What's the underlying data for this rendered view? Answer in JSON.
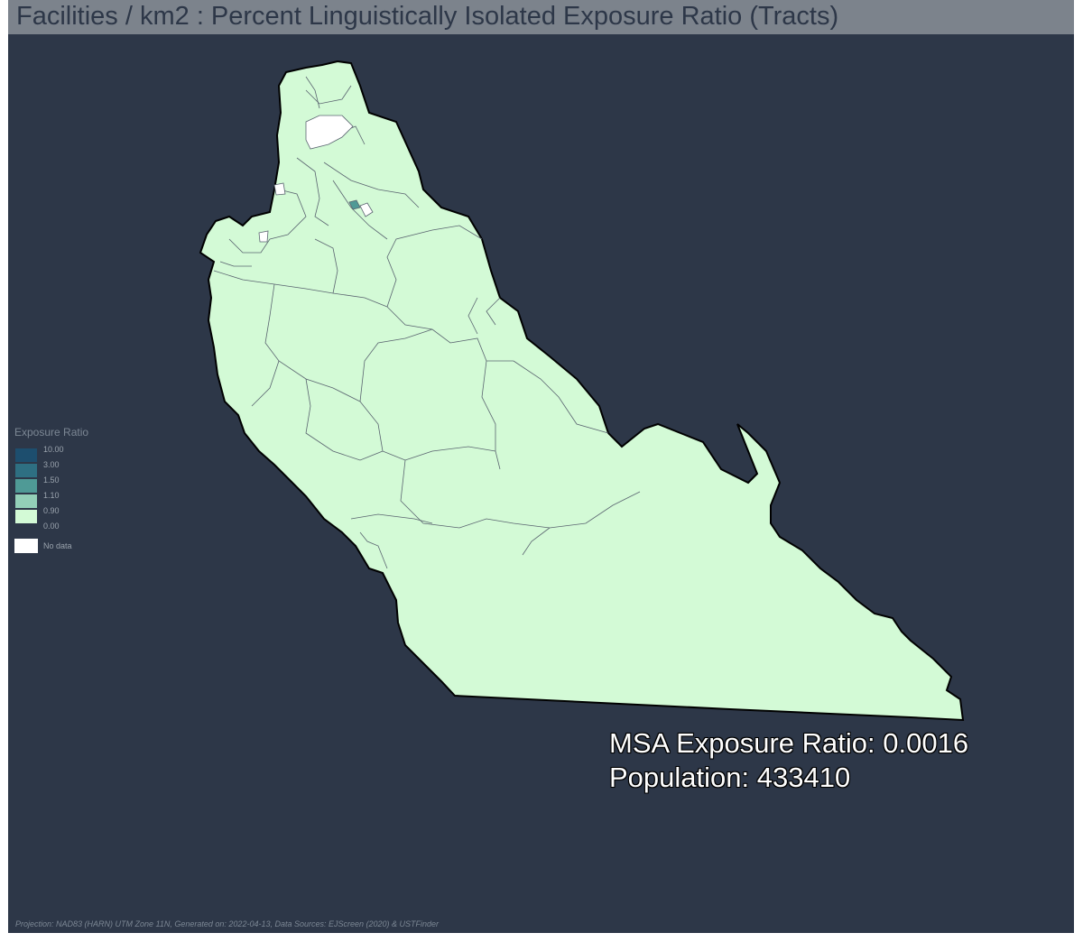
{
  "title": "Facilities / km2 : Percent Linguistically Isolated Exposure Ratio (Tracts)",
  "legend": {
    "title": "Exposure Ratio",
    "ticks": [
      "10.00",
      "3.00",
      "1.50",
      "1.10",
      "0.90",
      "0.00"
    ],
    "bins": [
      {
        "range": "3.00 – 10.00",
        "color": "#1d4e6e"
      },
      {
        "range": "1.50 – 3.00",
        "color": "#2e6f82"
      },
      {
        "range": "1.10 – 1.50",
        "color": "#4f9a96"
      },
      {
        "range": "0.90 – 1.10",
        "color": "#93d0b8"
      },
      {
        "range": "0.00 – 0.90",
        "color": "#d3fad6"
      }
    ],
    "no_data_label": "No data",
    "no_data_color": "#ffffff"
  },
  "stats": {
    "exposure": "MSA Exposure Ratio: 0.0016",
    "population": "Population: 433410"
  },
  "footer": "Projection: NAD83 (HARN) UTM Zone 11N, Generated on: 2022-04-13, Data Sources: EJScreen (2020) & USTFinder",
  "colors": {
    "background": "#2d3748",
    "title_bar": "#7c838c",
    "land": "#d3fad6",
    "tract_border": "#5a6470"
  }
}
